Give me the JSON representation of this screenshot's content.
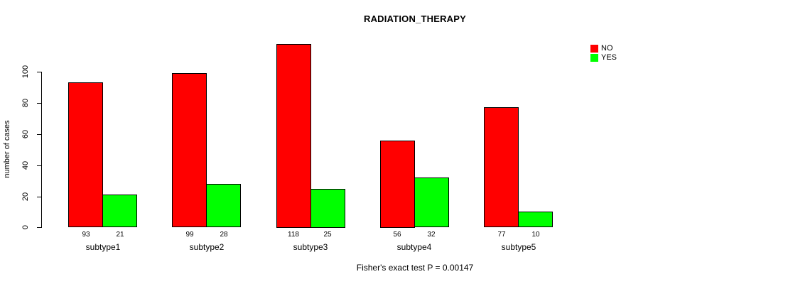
{
  "chart_data": {
    "type": "bar",
    "title": "RADIATION_THERAPY",
    "ylabel": "number of cases",
    "xlabel": "",
    "categories": [
      "subtype1",
      "subtype2",
      "subtype3",
      "subtype4",
      "subtype5"
    ],
    "series": [
      {
        "name": "NO",
        "color": "#FF0000",
        "values": [
          93,
          99,
          118,
          56,
          77
        ]
      },
      {
        "name": "YES",
        "color": "#00FF00",
        "values": [
          21,
          28,
          25,
          32,
          10
        ]
      }
    ],
    "yticks": [
      0,
      20,
      40,
      60,
      80,
      100
    ],
    "ylim": [
      0,
      120
    ],
    "bar_value_labels": true,
    "grid": false,
    "legend_position": "top-right",
    "annotation": "Fisher's exact test P = 0.00147"
  },
  "colors": {
    "background": "#FFFFFF",
    "axis": "#000000",
    "text": "#000000"
  }
}
